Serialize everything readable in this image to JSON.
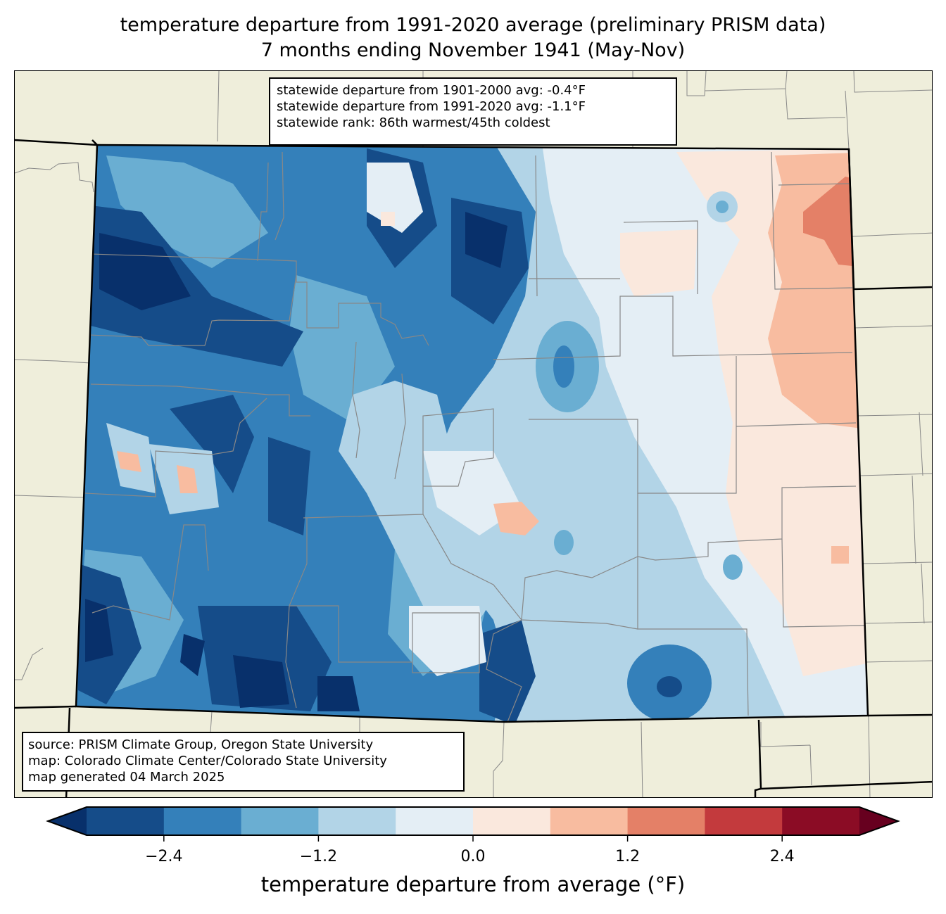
{
  "title": {
    "line1": "temperature departure from 1991-2020 average (preliminary PRISM data)",
    "line2": "7 months ending November 1941 (May-Nov)"
  },
  "stats_box": {
    "line1": "statewide departure from 1901-2000 avg: -0.4°F",
    "line2": "statewide departure from 1991-2020 avg: -1.1°F",
    "line3": "statewide rank: 86th warmest/45th coldest"
  },
  "source_box": {
    "line1": "source: PRISM Climate Group, Oregon State University",
    "line2": "map: Colorado Climate Center/Colorado State University",
    "line3": "map generated 04 March 2025"
  },
  "map": {
    "region": "Colorado",
    "background_color": "#efeedb",
    "state_border_color": "#000000",
    "county_border_color": "#888888"
  },
  "chart_data": {
    "type": "heatmap",
    "title": "temperature departure from 1991-2020 average (preliminary PRISM data)",
    "colorbar": {
      "label": "temperature departure from average (°F)",
      "levels": [
        -3.0,
        -2.4,
        -1.8,
        -1.2,
        -0.6,
        0.0,
        0.6,
        1.2,
        1.8,
        2.4,
        3.0
      ],
      "ticks": [
        -2.4,
        -1.2,
        0.0,
        1.2,
        2.4
      ],
      "tick_labels": [
        "−2.4",
        "−1.2",
        "0.0",
        "1.2",
        "2.4"
      ],
      "extend": "both",
      "under_color": "#08306b",
      "over_color": "#67001f",
      "colors": [
        "#154c89",
        "#3480ba",
        "#6aaed2",
        "#b2d4e7",
        "#e4eef5",
        "#fae8dd",
        "#f8bca0",
        "#e48067",
        "#c33a3d",
        "#8b0c25"
      ]
    },
    "regional_pattern": [
      {
        "area": "northwest",
        "range": [
          -3.0,
          -1.8
        ]
      },
      {
        "area": "southwest",
        "range": [
          -3.0,
          -1.8
        ]
      },
      {
        "area": "central mountains",
        "range": [
          -2.4,
          -0.6
        ]
      },
      {
        "area": "front range / eastern plains",
        "range": [
          -1.2,
          0.6
        ]
      },
      {
        "area": "far northeast",
        "range": [
          0.6,
          1.8
        ]
      },
      {
        "area": "southeast",
        "range": [
          -0.6,
          0.6
        ]
      }
    ]
  }
}
